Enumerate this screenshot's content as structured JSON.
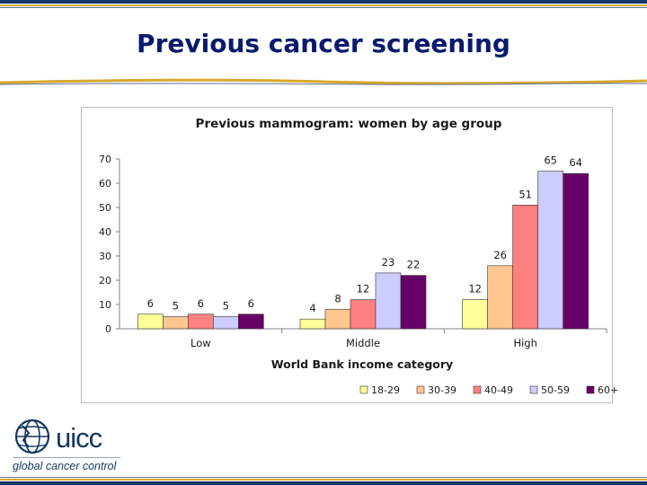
{
  "slide": {
    "title": "Previous cancer screening"
  },
  "logo": {
    "name": "uicc",
    "tagline": "global cancer control",
    "icon": "globe-icon"
  },
  "colors": {
    "title": "#0a1a6e",
    "border_navy": "#17356b",
    "border_gold": "#d9a82a"
  },
  "chart_data": {
    "type": "bar",
    "title": "Previous mammogram: women by age group",
    "xlabel": "World Bank income category",
    "ylabel": "",
    "categories": [
      "Low",
      "Middle",
      "High"
    ],
    "ylim": [
      0,
      70
    ],
    "yticks": [
      0,
      10,
      20,
      30,
      40,
      50,
      60,
      70
    ],
    "grid": false,
    "legend_position": "bottom",
    "series": [
      {
        "name": "18-29",
        "color": "#ffff99",
        "values": [
          6,
          4,
          12
        ]
      },
      {
        "name": "30-39",
        "color": "#ffc78f",
        "values": [
          5,
          8,
          26
        ]
      },
      {
        "name": "40-49",
        "color": "#ff8080",
        "values": [
          6,
          12,
          51
        ]
      },
      {
        "name": "50-59",
        "color": "#ccccff",
        "values": [
          5,
          23,
          65
        ]
      },
      {
        "name": "60+",
        "color": "#660066",
        "values": [
          6,
          22,
          64
        ]
      }
    ]
  }
}
